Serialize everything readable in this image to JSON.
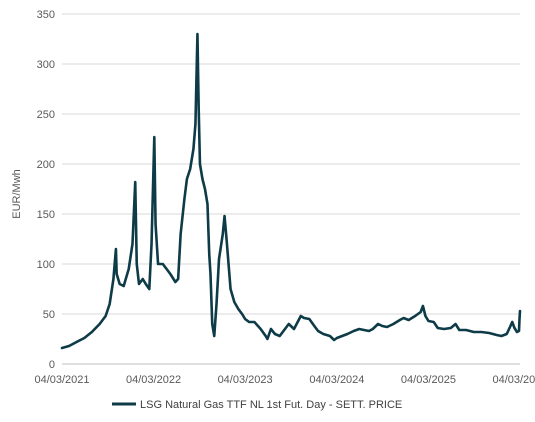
{
  "chart_data": {
    "type": "line",
    "title": "",
    "xlabel": "",
    "ylabel": "EUR/Mwh",
    "ylim": [
      0,
      350
    ],
    "yticks": [
      0,
      50,
      100,
      150,
      200,
      250,
      300,
      350
    ],
    "xlim": [
      "2021-03-04",
      "2026-03-04"
    ],
    "xticks": [
      "2021-03-04",
      "2022-03-04",
      "2023-03-04",
      "2024-03-04",
      "2025-03-04",
      "2026-03-04"
    ],
    "xtick_labels": [
      "04/03/2021",
      "04/03/2022",
      "04/03/2023",
      "04/03/2024",
      "04/03/2025",
      "04/03/2026"
    ],
    "grid": "horizontal",
    "legend_position": "bottom",
    "series": [
      {
        "name": "LSG Natural Gas TTF NL 1st Fut. Day - SETT. PRICE",
        "color": "#0d3b47",
        "points": [
          [
            "2021-03-04",
            16
          ],
          [
            "2021-04-01",
            18
          ],
          [
            "2021-05-01",
            22
          ],
          [
            "2021-06-01",
            26
          ],
          [
            "2021-07-01",
            32
          ],
          [
            "2021-08-01",
            40
          ],
          [
            "2021-08-25",
            48
          ],
          [
            "2021-09-10",
            60
          ],
          [
            "2021-09-25",
            85
          ],
          [
            "2021-10-05",
            115
          ],
          [
            "2021-10-08",
            90
          ],
          [
            "2021-10-20",
            80
          ],
          [
            "2021-11-05",
            78
          ],
          [
            "2021-11-25",
            95
          ],
          [
            "2021-12-10",
            120
          ],
          [
            "2021-12-21",
            182
          ],
          [
            "2021-12-27",
            100
          ],
          [
            "2022-01-05",
            80
          ],
          [
            "2022-01-20",
            85
          ],
          [
            "2022-02-01",
            80
          ],
          [
            "2022-02-15",
            75
          ],
          [
            "2022-02-24",
            120
          ],
          [
            "2022-03-07",
            227
          ],
          [
            "2022-03-12",
            140
          ],
          [
            "2022-03-22",
            100
          ],
          [
            "2022-04-10",
            100
          ],
          [
            "2022-04-25",
            95
          ],
          [
            "2022-05-10",
            90
          ],
          [
            "2022-05-30",
            82
          ],
          [
            "2022-06-10",
            85
          ],
          [
            "2022-06-20",
            130
          ],
          [
            "2022-07-05",
            165
          ],
          [
            "2022-07-15",
            185
          ],
          [
            "2022-07-28",
            195
          ],
          [
            "2022-08-10",
            215
          ],
          [
            "2022-08-18",
            240
          ],
          [
            "2022-08-26",
            330
          ],
          [
            "2022-08-31",
            255
          ],
          [
            "2022-09-05",
            200
          ],
          [
            "2022-09-15",
            185
          ],
          [
            "2022-09-25",
            175
          ],
          [
            "2022-10-05",
            160
          ],
          [
            "2022-10-12",
            110
          ],
          [
            "2022-10-17",
            90
          ],
          [
            "2022-10-24",
            40
          ],
          [
            "2022-11-01",
            28
          ],
          [
            "2022-11-10",
            60
          ],
          [
            "2022-11-20",
            105
          ],
          [
            "2022-12-05",
            130
          ],
          [
            "2022-12-12",
            148
          ],
          [
            "2022-12-20",
            125
          ],
          [
            "2023-01-05",
            75
          ],
          [
            "2023-01-20",
            62
          ],
          [
            "2023-02-05",
            55
          ],
          [
            "2023-02-20",
            50
          ],
          [
            "2023-03-04",
            45
          ],
          [
            "2023-03-20",
            42
          ],
          [
            "2023-04-10",
            42
          ],
          [
            "2023-05-05",
            35
          ],
          [
            "2023-05-25",
            28
          ],
          [
            "2023-06-01",
            25
          ],
          [
            "2023-06-15",
            35
          ],
          [
            "2023-07-01",
            30
          ],
          [
            "2023-07-20",
            28
          ],
          [
            "2023-08-10",
            35
          ],
          [
            "2023-08-25",
            40
          ],
          [
            "2023-09-15",
            35
          ],
          [
            "2023-10-12",
            48
          ],
          [
            "2023-10-25",
            46
          ],
          [
            "2023-11-15",
            45
          ],
          [
            "2023-12-05",
            38
          ],
          [
            "2023-12-20",
            33
          ],
          [
            "2024-01-10",
            30
          ],
          [
            "2024-02-05",
            28
          ],
          [
            "2024-02-22",
            24
          ],
          [
            "2024-03-04",
            26
          ],
          [
            "2024-03-25",
            28
          ],
          [
            "2024-04-15",
            30
          ],
          [
            "2024-05-10",
            33
          ],
          [
            "2024-06-01",
            35
          ],
          [
            "2024-06-20",
            34
          ],
          [
            "2024-07-10",
            33
          ],
          [
            "2024-07-25",
            35
          ],
          [
            "2024-08-15",
            40
          ],
          [
            "2024-09-01",
            38
          ],
          [
            "2024-09-20",
            37
          ],
          [
            "2024-10-15",
            40
          ],
          [
            "2024-11-10",
            44
          ],
          [
            "2024-11-25",
            46
          ],
          [
            "2024-12-15",
            44
          ],
          [
            "2025-01-10",
            48
          ],
          [
            "2025-02-01",
            52
          ],
          [
            "2025-02-10",
            58
          ],
          [
            "2025-02-20",
            48
          ],
          [
            "2025-03-04",
            43
          ],
          [
            "2025-03-25",
            42
          ],
          [
            "2025-04-10",
            36
          ],
          [
            "2025-05-05",
            35
          ],
          [
            "2025-06-01",
            36
          ],
          [
            "2025-06-20",
            40
          ],
          [
            "2025-07-05",
            34
          ],
          [
            "2025-08-01",
            34
          ],
          [
            "2025-09-01",
            32
          ],
          [
            "2025-10-01",
            32
          ],
          [
            "2025-11-01",
            31
          ],
          [
            "2025-12-01",
            29
          ],
          [
            "2025-12-20",
            28
          ],
          [
            "2026-01-10",
            30
          ],
          [
            "2026-01-25",
            38
          ],
          [
            "2026-02-01",
            42
          ],
          [
            "2026-02-10",
            36
          ],
          [
            "2026-02-20",
            32
          ],
          [
            "2026-02-28",
            33
          ],
          [
            "2026-03-02",
            45
          ],
          [
            "2026-03-04",
            53
          ]
        ]
      }
    ]
  }
}
